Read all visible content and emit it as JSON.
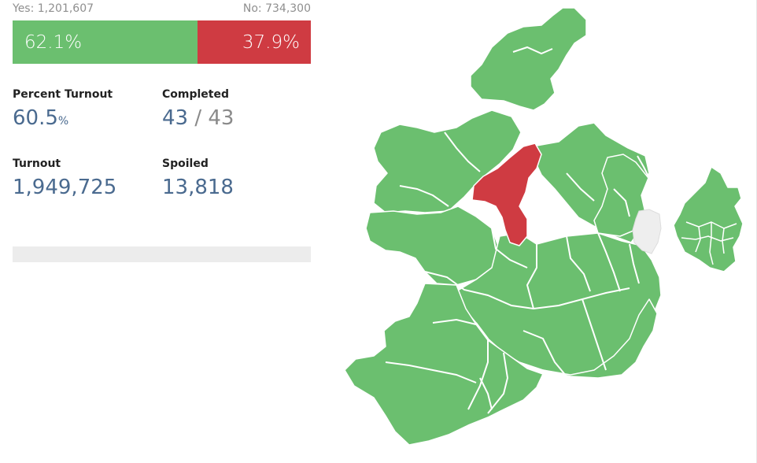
{
  "vote": {
    "yes_label": "Yes: 1,201,607",
    "no_label": "No: 734,300",
    "yes_pct_label": "62.1%",
    "no_pct_label": "37.9%",
    "yes_pct": 62.1,
    "no_pct": 37.9
  },
  "stats": {
    "turnout_pct_label": "Percent Turnout",
    "turnout_pct_value": "60.5",
    "turnout_pct_unit": "%",
    "completed_label": "Completed",
    "completed_value": "43",
    "completed_sep": " / ",
    "completed_total": "43",
    "turnout_label": "Turnout",
    "turnout_value": "1,949,725",
    "spoiled_label": "Spoiled",
    "spoiled_value": "13,818"
  },
  "colors": {
    "yes": "#6bbf6f",
    "no": "#cf3b42",
    "no_data": "#eeeeee",
    "value_text": "#4a6a8f"
  },
  "map": {
    "result_no_region": "Roscommon–Galway",
    "non_voting_region": "Northern Ireland"
  }
}
